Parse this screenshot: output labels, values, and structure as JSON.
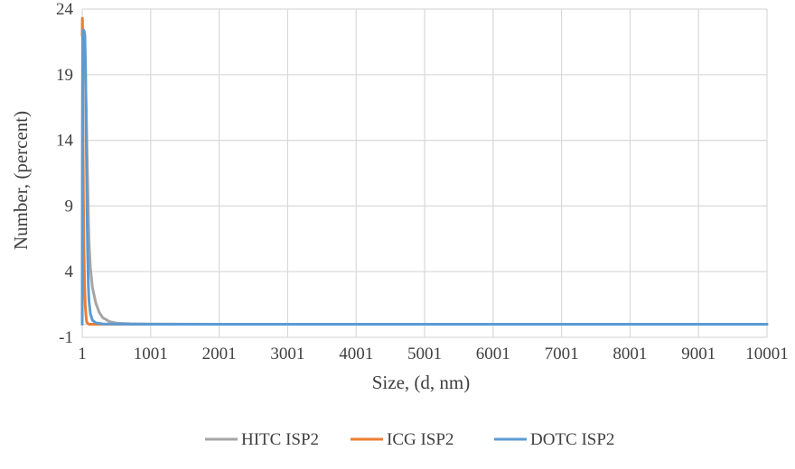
{
  "chart_data": {
    "type": "line",
    "title": "",
    "xlabel": "Size, (d, nm)",
    "ylabel": "Number, (percent)",
    "xlim": [
      1,
      10001
    ],
    "ylim": [
      -1,
      24
    ],
    "x_ticks": [
      1,
      1001,
      2001,
      3001,
      4001,
      5001,
      6001,
      7001,
      8001,
      9001,
      10001
    ],
    "y_ticks": [
      -1,
      4,
      9,
      14,
      19,
      24
    ],
    "grid": true,
    "legend_position": "bottom",
    "series": [
      {
        "name": "HITC ISP2",
        "color": "#a5a5a5",
        "x": [
          1,
          5,
          10,
          20,
          30,
          40,
          50,
          60,
          70,
          80,
          90,
          100,
          120,
          150,
          200,
          250,
          300,
          400,
          500,
          700,
          1000,
          2000,
          4000,
          7000,
          10001
        ],
        "y": [
          0,
          19.0,
          22.5,
          22.3,
          21.5,
          20.5,
          18.5,
          16.5,
          13.5,
          11.0,
          8.5,
          6.3,
          4.3,
          2.8,
          1.6,
          0.9,
          0.5,
          0.2,
          0.08,
          0.03,
          0.01,
          0,
          0,
          0,
          0
        ]
      },
      {
        "name": "ICG ISP2",
        "color": "#ed7d31",
        "x": [
          1,
          3,
          5,
          8,
          12,
          18,
          25,
          35,
          45,
          55,
          65,
          80,
          100,
          200,
          1000,
          10001
        ],
        "y": [
          22.0,
          23.3,
          23.0,
          20.0,
          15.0,
          10.0,
          6.0,
          3.0,
          1.5,
          0.7,
          0.2,
          0.05,
          0,
          0,
          0,
          0
        ]
      },
      {
        "name": "DOTC ISP2",
        "color": "#5b9bd5",
        "x": [
          1,
          5,
          10,
          20,
          30,
          40,
          50,
          60,
          70,
          80,
          90,
          100,
          120,
          150,
          200,
          300,
          1000,
          10001
        ],
        "y": [
          0,
          15.0,
          22.0,
          22.4,
          22.3,
          22.0,
          19.4,
          14.0,
          9.0,
          5.5,
          3.0,
          1.8,
          0.8,
          0.3,
          0.1,
          0.02,
          0,
          0
        ]
      }
    ]
  }
}
